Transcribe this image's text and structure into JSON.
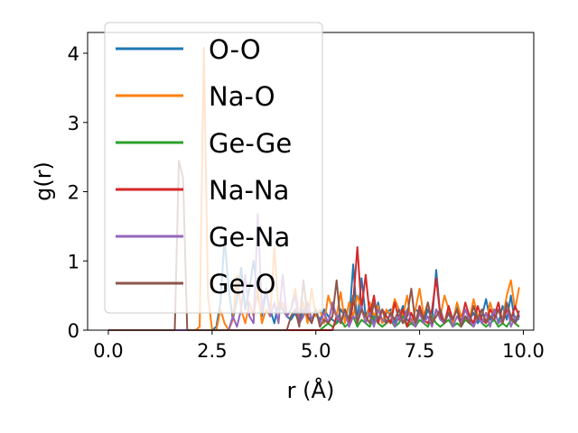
{
  "chart_data": {
    "type": "line",
    "xlabel": "r (Å)",
    "ylabel": "g(r)",
    "xlim": [
      -0.5,
      10.25
    ],
    "ylim": [
      0,
      4.3
    ],
    "xticks": [
      0.0,
      2.5,
      5.0,
      7.5,
      10.0
    ],
    "xtick_labels": [
      "0.0",
      "2.5",
      "5.0",
      "7.5",
      "10.0"
    ],
    "yticks": [
      0,
      1,
      2,
      3,
      4
    ],
    "ytick_labels": [
      "0",
      "1",
      "2",
      "3",
      "4"
    ],
    "grid": false,
    "legend_position": "top-left",
    "x": [
      0.0,
      0.1,
      0.2,
      0.3,
      0.4,
      0.5,
      0.6,
      0.7,
      0.8,
      0.9,
      1.0,
      1.1,
      1.2,
      1.3,
      1.4,
      1.5,
      1.6,
      1.7,
      1.8,
      1.9,
      2.0,
      2.1,
      2.2,
      2.3,
      2.4,
      2.5,
      2.6,
      2.7,
      2.8,
      2.9,
      3.0,
      3.1,
      3.2,
      3.3,
      3.4,
      3.5,
      3.6,
      3.7,
      3.8,
      3.9,
      4.0,
      4.1,
      4.2,
      4.3,
      4.4,
      4.5,
      4.6,
      4.7,
      4.8,
      4.9,
      5.0,
      5.1,
      5.2,
      5.3,
      5.4,
      5.5,
      5.6,
      5.7,
      5.8,
      5.9,
      6.0,
      6.1,
      6.2,
      6.3,
      6.4,
      6.5,
      6.6,
      6.7,
      6.8,
      6.9,
      7.0,
      7.1,
      7.2,
      7.3,
      7.4,
      7.5,
      7.6,
      7.7,
      7.8,
      7.9,
      8.0,
      8.1,
      8.2,
      8.3,
      8.4,
      8.5,
      8.6,
      8.7,
      8.8,
      8.9,
      9.0,
      9.1,
      9.2,
      9.3,
      9.4,
      9.5,
      9.6,
      9.7,
      9.8,
      9.9
    ],
    "series": [
      {
        "name": "O-O",
        "color": "#1f77b4",
        "values": [
          0,
          0,
          0,
          0,
          0,
          0,
          0,
          0,
          0,
          0,
          0,
          0,
          0,
          0,
          0,
          0,
          0,
          0,
          0,
          0,
          0,
          0,
          0,
          0,
          0,
          0,
          0.05,
          0.4,
          1.33,
          0.6,
          0.15,
          0.45,
          0.9,
          0.3,
          0.6,
          1.0,
          0.5,
          0.2,
          0.55,
          0.3,
          0.1,
          0.4,
          0.3,
          0.2,
          0.15,
          0.25,
          0.1,
          0.3,
          0.2,
          0.15,
          0.25,
          0.15,
          0.3,
          0.2,
          0.15,
          0.1,
          0.3,
          0.2,
          0.1,
          0.95,
          0.1,
          0.75,
          0.2,
          0.35,
          0.1,
          0.4,
          0.1,
          0.25,
          0.3,
          0.1,
          0.2,
          0.35,
          0.15,
          0.1,
          0.3,
          0.25,
          0.1,
          0.3,
          0.15,
          0.87,
          0.2,
          0.1,
          0.3,
          0.15,
          0.35,
          0.1,
          0.2,
          0.15,
          0.25,
          0.1,
          0.2,
          0.45,
          0.15,
          0.3,
          0.1,
          0.35,
          0.15,
          0.5,
          0.1,
          0.2
        ]
      },
      {
        "name": "Na-O",
        "color": "#ff7f0e",
        "values": [
          0,
          0,
          0,
          0,
          0,
          0,
          0,
          0,
          0,
          0,
          0,
          0,
          0,
          0,
          0,
          0,
          0,
          0,
          0,
          0,
          0,
          0,
          0.05,
          4.08,
          0.5,
          0,
          0,
          0.3,
          0.1,
          0,
          0.15,
          0.8,
          0.3,
          0.1,
          0.4,
          0.2,
          0.6,
          0.1,
          0.3,
          0.2,
          1.2,
          0.3,
          0.4,
          0.2,
          0.3,
          0.6,
          0.2,
          0.4,
          0.1,
          0.6,
          0.2,
          0.3,
          0.1,
          0.5,
          0.3,
          0.2,
          0.55,
          0.1,
          0.4,
          0.2,
          0.5,
          0.3,
          0.1,
          0.4,
          0.2,
          0.35,
          0.1,
          0.3,
          0.2,
          0.45,
          0.3,
          0.2,
          0.5,
          0.1,
          0.3,
          0.6,
          0.2,
          0.4,
          0.1,
          0.3,
          0.2,
          0.5,
          0.3,
          0.1,
          0.4,
          0.2,
          0.3,
          0.15,
          0.45,
          0.2,
          0.3,
          0.1,
          0.4,
          0.2,
          0.3,
          0.15,
          0.5,
          0.72,
          0.3,
          0.62
        ]
      },
      {
        "name": "Ge-Ge",
        "color": "#2ca02c",
        "values": [
          0,
          0,
          0,
          0,
          0,
          0,
          0,
          0,
          0,
          0,
          0,
          0,
          0,
          0,
          0,
          0,
          0,
          0,
          0,
          0,
          0,
          0,
          0,
          0,
          0,
          0,
          0,
          0,
          0,
          0,
          0,
          0,
          0,
          0,
          0,
          0,
          0,
          0,
          0,
          0,
          0,
          0,
          0,
          0,
          0,
          0,
          0,
          0,
          0,
          0,
          0,
          0,
          0.05,
          0.1,
          0.05,
          0.1,
          0.15,
          0.05,
          0.1,
          0.2,
          0.05,
          0.15,
          0.1,
          0.05,
          0.2,
          0.1,
          0.05,
          0.1,
          0.15,
          0.05,
          0.1,
          0.2,
          0.05,
          0.1,
          0.05,
          0.15,
          0.1,
          0.05,
          0.2,
          0.1,
          0.05,
          0.1,
          0.15,
          0.05,
          0.1,
          0.05,
          0.15,
          0.1,
          0.05,
          0.2,
          0.1,
          0.05,
          0.1,
          0.15,
          0.05,
          0.1,
          0.05,
          0.15,
          0.1,
          0.05
        ]
      },
      {
        "name": "Na-Na",
        "color": "#d62728",
        "values": [
          0,
          0,
          0,
          0,
          0,
          0,
          0,
          0,
          0,
          0,
          0,
          0,
          0,
          0,
          0,
          0,
          0,
          0,
          0,
          0,
          0,
          0,
          0,
          0,
          0,
          0,
          0,
          0,
          0,
          0,
          0,
          0,
          0,
          0,
          0,
          0,
          0,
          0,
          0,
          0,
          0,
          0,
          0,
          0,
          0,
          0,
          0,
          0,
          0,
          0,
          0,
          0,
          0,
          0,
          0,
          0.2,
          0.1,
          0.3,
          0.05,
          0.4,
          1.2,
          0.3,
          0.8,
          0.2,
          0.5,
          0.1,
          0.3,
          0.2,
          0.1,
          0.4,
          0.15,
          0.3,
          0.05,
          0.25,
          0.1,
          0.35,
          0.15,
          0.1,
          0.3,
          0.75,
          0.2,
          0.1,
          0.35,
          0.15,
          0.3,
          0.1,
          0.4,
          0.2,
          0.1,
          0.35,
          0.15,
          0.1,
          0.3,
          0.2,
          0.4,
          0.1,
          0.3,
          0.15,
          0.35,
          0.2
        ]
      },
      {
        "name": "Ge-Na",
        "color": "#9467bd",
        "values": [
          0,
          0,
          0,
          0,
          0,
          0,
          0,
          0,
          0,
          0,
          0,
          0,
          0,
          0,
          0,
          0,
          0,
          0,
          0,
          0,
          0,
          0,
          0,
          0,
          0,
          0,
          0,
          0,
          0,
          0,
          0.2,
          0.05,
          0.3,
          0.8,
          0.2,
          0.1,
          1.68,
          0.3,
          0.6,
          0.2,
          0.4,
          0.1,
          0.8,
          0.2,
          0.3,
          0.5,
          0.1,
          0.2,
          0.4,
          0.15,
          0.3,
          0.1,
          0.25,
          0.1,
          0.4,
          0.2,
          0.1,
          0.3,
          0.05,
          0.2,
          0.15,
          0.35,
          0.1,
          0.25,
          0.05,
          0.3,
          0.15,
          0.1,
          0.25,
          0.05,
          0.2,
          0.1,
          0.3,
          0.15,
          0.05,
          0.25,
          0.1,
          0.2,
          0.05,
          0.3,
          0.15,
          0.1,
          0.25,
          0.05,
          0.2,
          0.1,
          0.3,
          0.15,
          0.05,
          0.2,
          0.1,
          0.25,
          0.05,
          0.3,
          0.1,
          0.15,
          0.4,
          0.05,
          0.2,
          0.15
        ]
      },
      {
        "name": "Ge-O",
        "color": "#8c564b",
        "values": [
          0,
          0,
          0,
          0,
          0,
          0,
          0,
          0,
          0,
          0,
          0,
          0,
          0,
          0,
          0,
          0,
          0,
          2.45,
          2.2,
          0,
          0,
          0,
          0,
          0,
          0,
          0,
          0,
          0,
          0,
          0,
          0,
          0,
          0,
          0,
          0,
          0,
          0,
          0,
          0,
          0,
          0,
          0,
          0,
          0,
          0.2,
          0.3,
          0.05,
          0.72,
          0.2,
          0.1,
          0.3,
          0.05,
          0.15,
          0.1,
          0.2,
          0.72,
          0.1,
          0.3,
          0.15,
          0.5,
          0.1,
          0.3,
          0.2,
          0.1,
          0.4,
          0.15,
          0.3,
          0.1,
          0.25,
          0.15,
          0.3,
          0.1,
          0.2,
          0.6,
          0.1,
          0.3,
          0.15,
          0.4,
          0.1,
          0.2,
          0.3,
          0.1,
          0.25,
          0.15,
          0.3,
          0.05,
          0.2,
          0.1,
          0.35,
          0.15,
          0.3,
          0.1,
          0.2,
          0.15,
          0.3,
          0.1,
          0.4,
          0.2,
          0.1,
          0.28
        ]
      }
    ]
  }
}
